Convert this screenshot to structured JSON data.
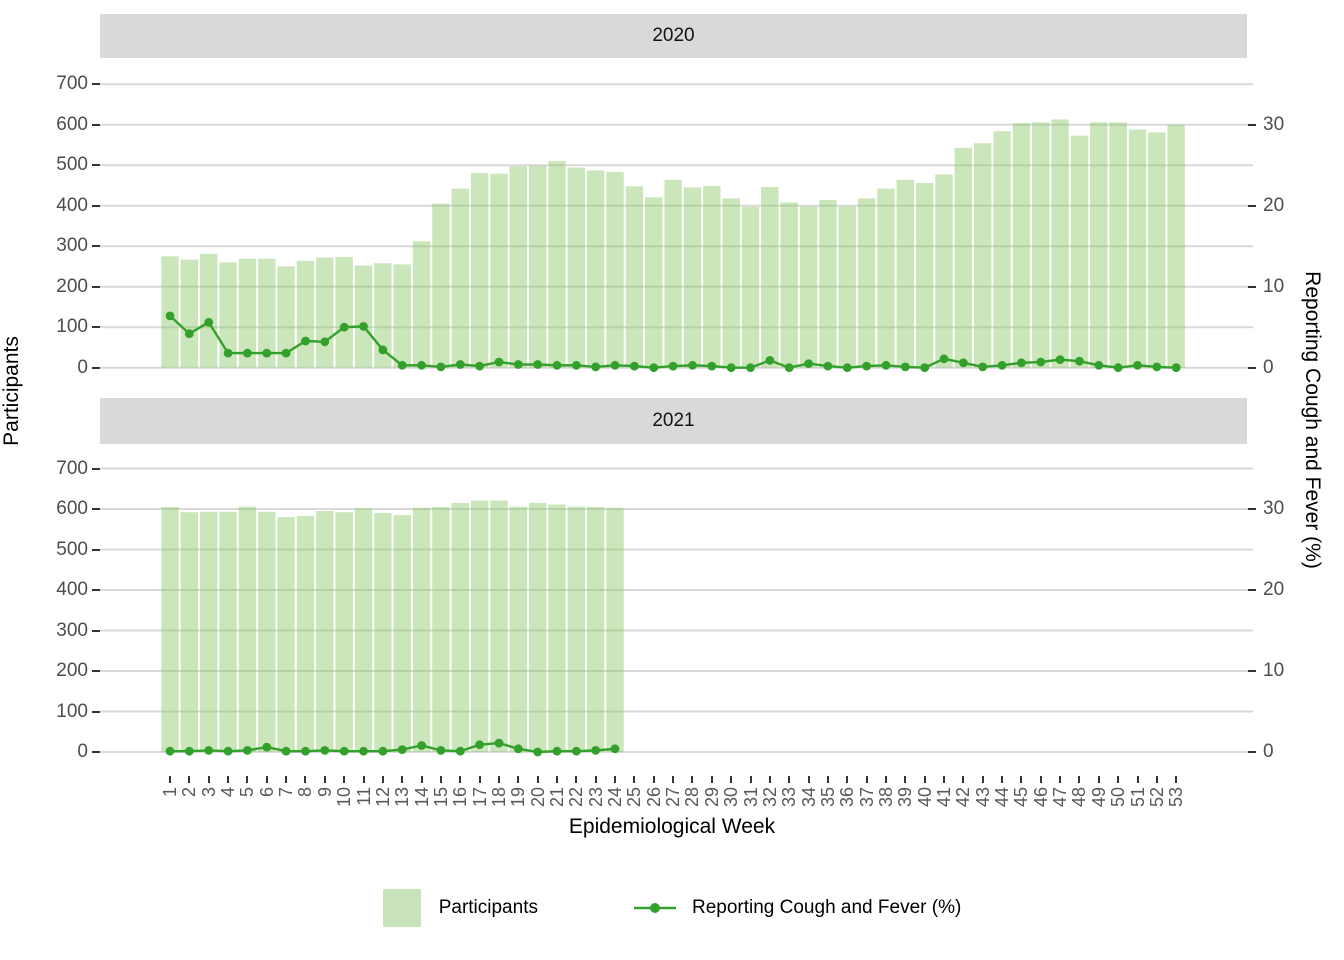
{
  "facets": [
    {
      "label": "2020"
    },
    {
      "label": "2021"
    }
  ],
  "axes": {
    "x": {
      "title": "Epidemiological Week",
      "ticks": [
        1,
        2,
        3,
        4,
        5,
        6,
        7,
        8,
        9,
        10,
        11,
        12,
        13,
        14,
        15,
        16,
        17,
        18,
        19,
        20,
        21,
        22,
        23,
        24,
        25,
        26,
        27,
        28,
        29,
        30,
        31,
        32,
        33,
        34,
        35,
        36,
        37,
        38,
        39,
        40,
        41,
        42,
        43,
        44,
        45,
        46,
        47,
        48,
        49,
        50,
        51,
        52,
        53
      ]
    },
    "y_left": {
      "title": "Participants",
      "ticks": [
        700,
        600,
        500,
        400,
        300,
        200,
        100,
        0
      ],
      "lim": [
        0,
        700
      ]
    },
    "y_right": {
      "title": "Reporting Cough and Fever (%)",
      "ticks": [
        30,
        20,
        10,
        0
      ],
      "lim": [
        0,
        35
      ]
    }
  },
  "legend": {
    "items": [
      {
        "label": "Participants",
        "type": "fill"
      },
      {
        "label": "Reporting Cough and Fever (%)",
        "type": "line-point"
      }
    ]
  },
  "colors": {
    "bar_fill": "#8dc768",
    "bar_opacity": 0.45,
    "bar_legend": "#c9e4ba",
    "line": "#33a02c",
    "strip_bg": "#d9d9d9",
    "gridline": "#d9d9d9",
    "tick_label": "#4d4d4d"
  },
  "chart_data": [
    {
      "facet": "2020",
      "type": "bar+line",
      "x": [
        1,
        2,
        3,
        4,
        5,
        6,
        7,
        8,
        9,
        10,
        11,
        12,
        13,
        14,
        15,
        16,
        17,
        18,
        19,
        20,
        21,
        22,
        23,
        24,
        25,
        26,
        27,
        28,
        29,
        30,
        31,
        32,
        33,
        34,
        35,
        36,
        37,
        38,
        39,
        40,
        41,
        42,
        43,
        44,
        45,
        46,
        47,
        48,
        49,
        50,
        51,
        52,
        53
      ],
      "series": [
        {
          "name": "Participants",
          "type": "bar",
          "axis": "left",
          "values": [
            275,
            267,
            281,
            260,
            269,
            269,
            250,
            264,
            272,
            273,
            252,
            258,
            255,
            312,
            405,
            442,
            481,
            479,
            497,
            499,
            510,
            494,
            487,
            483,
            448,
            421,
            464,
            445,
            449,
            418,
            397,
            446,
            408,
            398,
            414,
            398,
            418,
            442,
            464,
            456,
            477,
            543,
            554,
            584,
            604,
            606,
            613,
            573,
            606,
            606,
            588,
            581,
            600
          ]
        },
        {
          "name": "Reporting Cough and Fever (%)",
          "type": "line",
          "axis": "right",
          "values": [
            6.4,
            4.2,
            5.6,
            1.8,
            1.8,
            1.8,
            1.8,
            3.3,
            3.2,
            5.0,
            5.1,
            2.2,
            0.3,
            0.3,
            0.1,
            0.4,
            0.2,
            0.7,
            0.4,
            0.4,
            0.3,
            0.3,
            0.1,
            0.3,
            0.2,
            0.0,
            0.2,
            0.3,
            0.2,
            0.0,
            0.0,
            0.9,
            0.0,
            0.5,
            0.2,
            0.0,
            0.2,
            0.3,
            0.1,
            0.0,
            1.1,
            0.6,
            0.1,
            0.3,
            0.6,
            0.7,
            1.0,
            0.8,
            0.3,
            0.0,
            0.3,
            0.1,
            0.0
          ]
        }
      ],
      "ylim_left": [
        0,
        700
      ],
      "ylim_right": [
        0,
        35
      ],
      "grid": "major-horizontal"
    },
    {
      "facet": "2021",
      "type": "bar+line",
      "x": [
        1,
        2,
        3,
        4,
        5,
        6,
        7,
        8,
        9,
        10,
        11,
        12,
        13,
        14,
        15,
        16,
        17,
        18,
        19,
        20,
        21,
        22,
        23,
        24
      ],
      "series": [
        {
          "name": "Participants",
          "type": "bar",
          "axis": "left",
          "values": [
            605,
            592,
            593,
            593,
            606,
            593,
            580,
            583,
            595,
            592,
            602,
            590,
            585,
            603,
            605,
            615,
            621,
            621,
            606,
            615,
            611,
            606,
            605,
            603
          ]
        },
        {
          "name": "Reporting Cough and Fever (%)",
          "type": "line",
          "axis": "right",
          "values": [
            0.1,
            0.1,
            0.2,
            0.1,
            0.2,
            0.6,
            0.1,
            0.1,
            0.2,
            0.1,
            0.1,
            0.1,
            0.3,
            0.8,
            0.2,
            0.1,
            0.9,
            1.1,
            0.4,
            0.0,
            0.1,
            0.1,
            0.2,
            0.4
          ]
        }
      ],
      "ylim_left": [
        0,
        700
      ],
      "ylim_right": [
        0,
        35
      ],
      "grid": "major-horizontal"
    }
  ]
}
